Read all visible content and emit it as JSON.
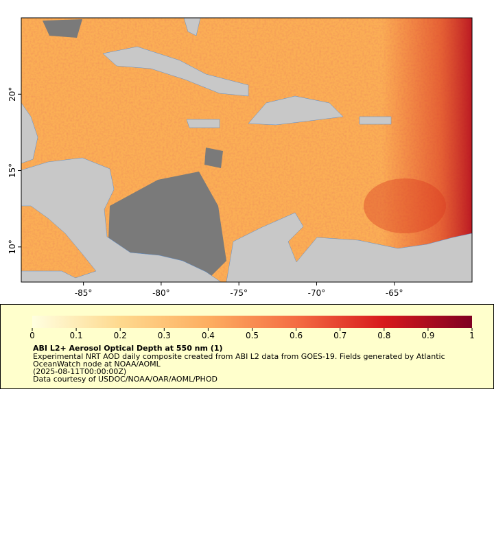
{
  "map": {
    "xlim": [
      -89,
      -60
    ],
    "ylim": [
      7.7,
      25
    ],
    "xticks": [
      {
        "value": -85,
        "label": "-85°"
      },
      {
        "value": -80,
        "label": "-80°"
      },
      {
        "value": -75,
        "label": "-75°"
      },
      {
        "value": -70,
        "label": "-70°"
      },
      {
        "value": -65,
        "label": "-65°"
      }
    ],
    "yticks": [
      {
        "value": 10,
        "label": "10°"
      },
      {
        "value": 15,
        "label": "15°"
      },
      {
        "value": 20,
        "label": "20°"
      }
    ]
  },
  "colorbar": {
    "range": [
      0,
      1
    ],
    "ticks": [
      0,
      0.1,
      0.2,
      0.3,
      0.4,
      0.5,
      0.6,
      0.7,
      0.8,
      0.9,
      1
    ]
  },
  "legend": {
    "title": "ABI L2+ Aerosol Optical Depth at 550 nm (1)",
    "lines": [
      "Experimental NRT AOD daily composite created from ABI L2 data from GOES-19. Fields generated by Atlantic",
      "OceanWatch node at NOAA/AOML",
      "(2025-08-11T00:00:00Z)",
      "Data courtesy of USDOC/NOAA/OAR/AOML/PHOD"
    ]
  }
}
